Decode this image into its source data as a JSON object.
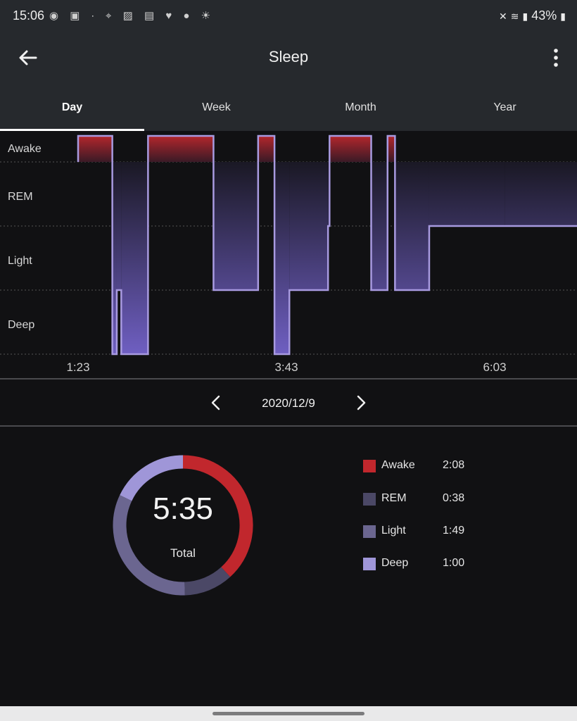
{
  "status_bar": {
    "time": "15:06",
    "battery": "43%",
    "left_icons": [
      "snapchat-icon",
      "news-icon",
      "wena-icon",
      "location-icon",
      "gallery-icon",
      "calendar-icon",
      "heart-icon",
      "bulb-icon",
      "weather-icon"
    ],
    "right_icons": [
      "mute-icon",
      "wifi-icon",
      "volte-icon",
      "signal-icon",
      "battery-icon"
    ]
  },
  "app_bar": {
    "title": "Sleep"
  },
  "tabs": [
    {
      "label": "Day",
      "active": true
    },
    {
      "label": "Week",
      "active": false
    },
    {
      "label": "Month",
      "active": false
    },
    {
      "label": "Year",
      "active": false
    }
  ],
  "chart_data": {
    "type": "line",
    "stages": [
      "Awake",
      "REM",
      "Light",
      "Deep"
    ],
    "x_ticks": [
      "1:23",
      "3:43",
      "6:03"
    ],
    "step_profile": [
      {
        "start": "1:23",
        "stage": "Awake"
      },
      {
        "start": "1:46",
        "stage": "Deep"
      },
      {
        "start": "1:49",
        "stage": "Light"
      },
      {
        "start": "1:52",
        "stage": "Deep"
      },
      {
        "start": "2:10",
        "stage": "Awake"
      },
      {
        "start": "2:54",
        "stage": "Light"
      },
      {
        "start": "3:24",
        "stage": "Awake"
      },
      {
        "start": "3:35",
        "stage": "Deep"
      },
      {
        "start": "3:45",
        "stage": "Light"
      },
      {
        "start": "4:11",
        "stage": "REM"
      },
      {
        "start": "4:12",
        "stage": "Awake"
      },
      {
        "start": "4:40",
        "stage": "Light"
      },
      {
        "start": "4:51",
        "stage": "Awake"
      },
      {
        "start": "4:56",
        "stage": "Light"
      },
      {
        "start": "5:19",
        "stage": "REM"
      },
      {
        "start": "6:10",
        "stage": "REM"
      }
    ],
    "colors": {
      "awake": "#c1272d",
      "line": "#a89ae0",
      "fill_bottom": "#6f5fc2",
      "grid": "#555555"
    }
  },
  "date_nav": {
    "date": "2020/12/9"
  },
  "summary": {
    "total_value": "5:35",
    "total_label": "Total",
    "stages": [
      {
        "name": "Awake",
        "duration": "2:08",
        "minutes": 128,
        "color": "#c1272d"
      },
      {
        "name": "REM",
        "duration": "0:38",
        "minutes": 38,
        "color": "#4b4866"
      },
      {
        "name": "Light",
        "duration": "1:49",
        "minutes": 109,
        "color": "#6b6690"
      },
      {
        "name": "Deep",
        "duration": "1:00",
        "minutes": 60,
        "color": "#9f96d8"
      }
    ]
  }
}
